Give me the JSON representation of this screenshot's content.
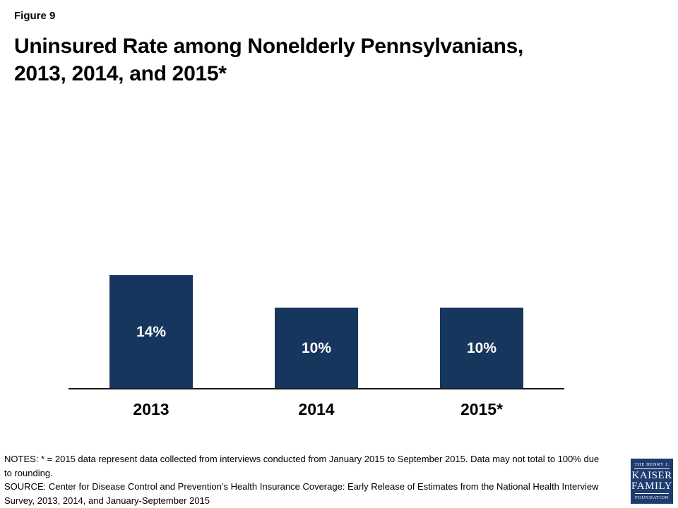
{
  "figure_label": "Figure 9",
  "title_line1": "Uninsured Rate among Nonelderly Pennsylvanians,",
  "title_line2": "2013, 2014, and 2015*",
  "chart_data": {
    "type": "bar",
    "title": "Uninsured Rate among Nonelderly Pennsylvanians, 2013, 2014, and 2015*",
    "categories": [
      "2013",
      "2014",
      "2015*"
    ],
    "values": [
      14,
      10,
      10
    ],
    "value_labels": [
      "14%",
      "10%",
      "10%"
    ],
    "xlabel": "",
    "ylabel": "",
    "ylim": [
      0,
      14
    ],
    "grid": false,
    "legend": false,
    "bar_color": "#17365D",
    "value_label_color": "#FFFFFF"
  },
  "notes": "NOTES: * = 2015 data represent data collected from interviews conducted from January 2015 to September 2015. Data may not total to 100% due to rounding.",
  "source": "SOURCE: Center for Disease Control and Prevention’s Health Insurance Coverage: Early Release of Estimates from the National Health Interview Survey, 2013, 2014, and January-September 2015",
  "logo": {
    "line1": "THE HENRY J.",
    "line2": "KAISER",
    "line3": "FAMILY",
    "line4": "FOUNDATION",
    "bg_color": "#1E3C6E"
  }
}
